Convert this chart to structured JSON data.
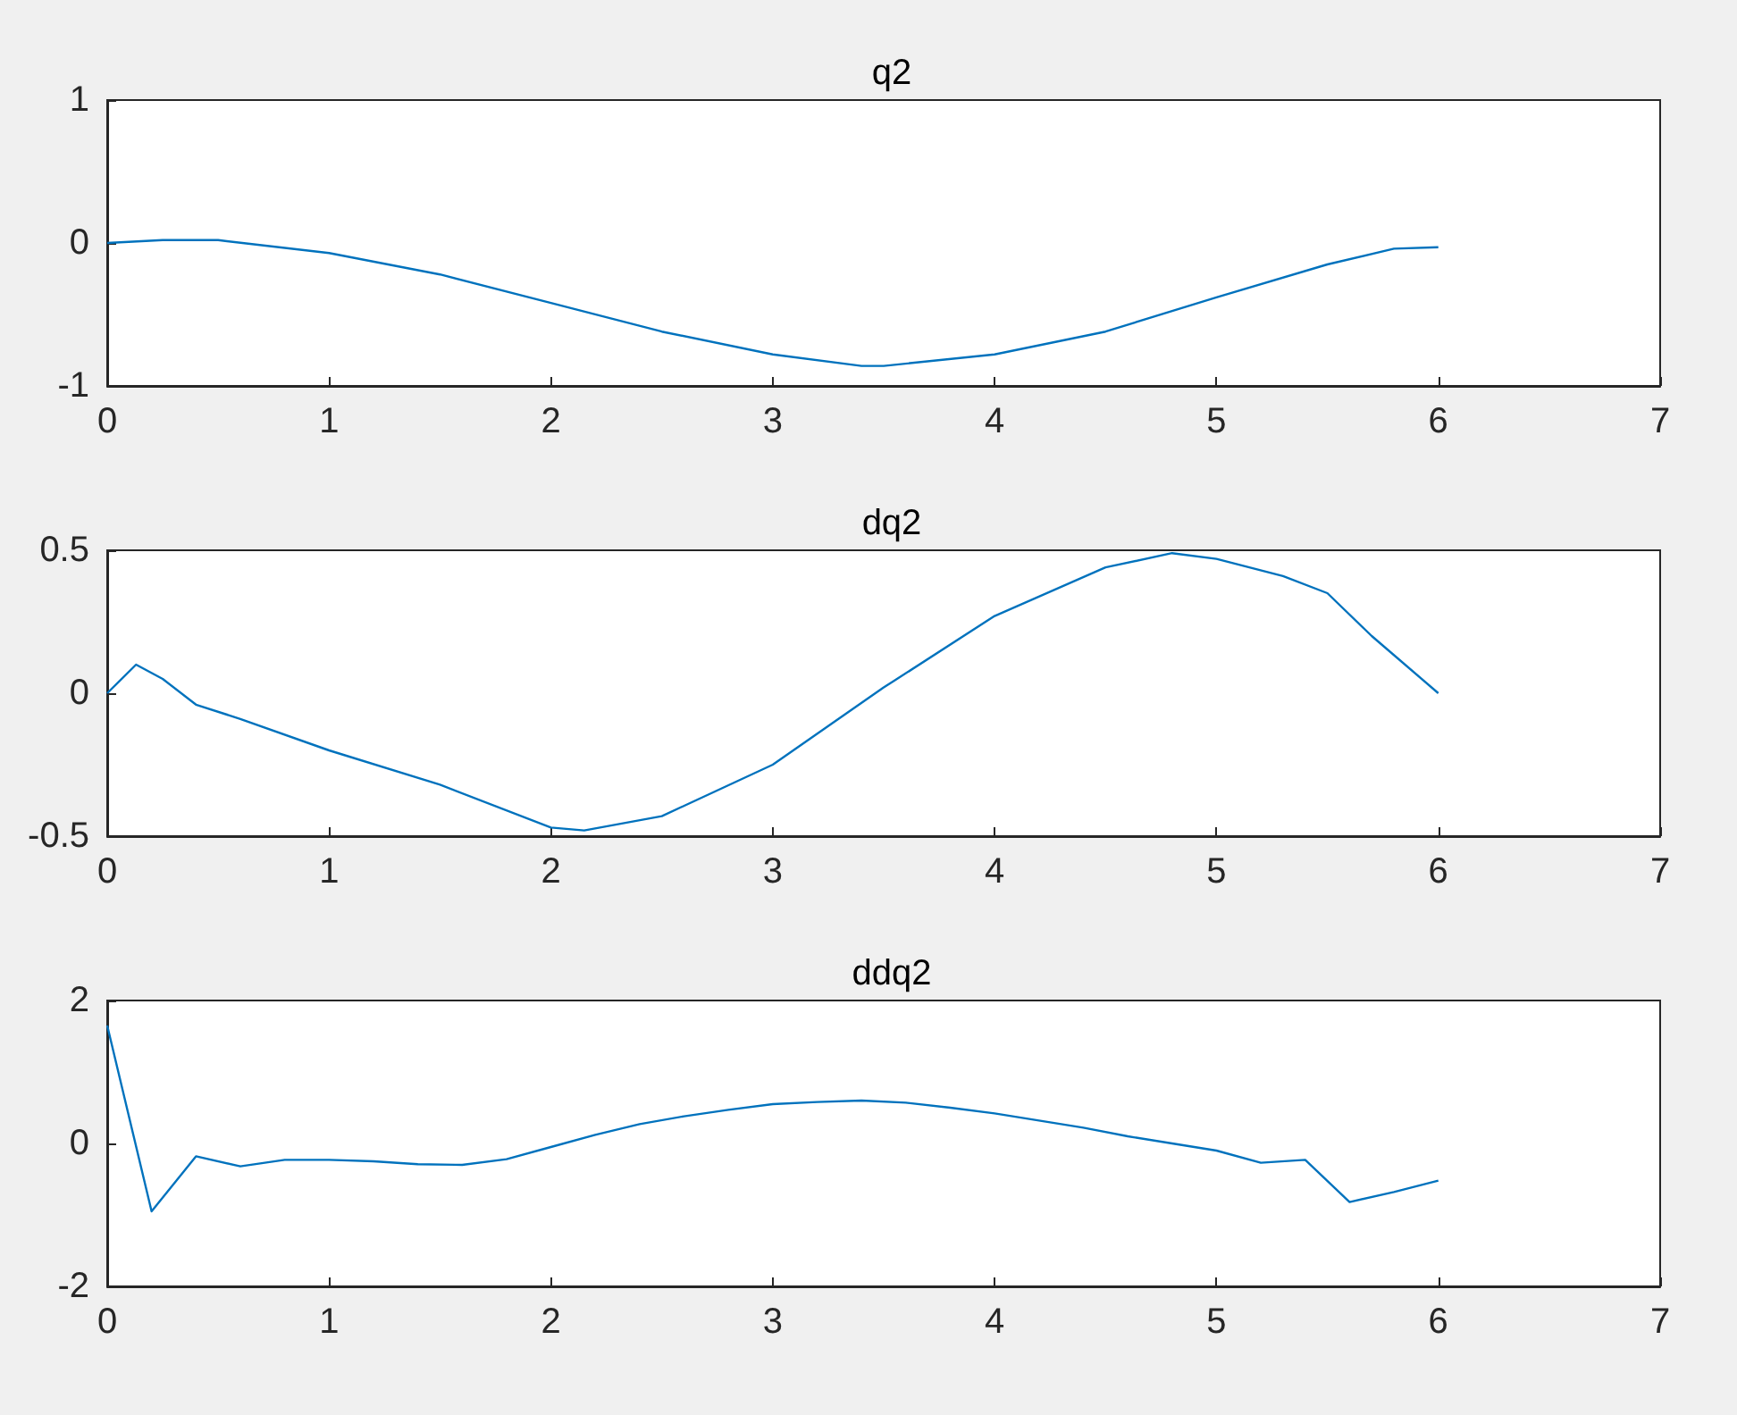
{
  "chart_data": [
    {
      "type": "line",
      "title": "q2",
      "xlim": [
        0,
        7
      ],
      "xticks": [
        0,
        1,
        2,
        3,
        4,
        5,
        6,
        7
      ],
      "ylim": [
        -1,
        1
      ],
      "yticks": [
        -1,
        0,
        1
      ],
      "grid": false,
      "marker": "none",
      "line_style": "solid",
      "series": [
        {
          "color": "#0072bd",
          "x": [
            0,
            0.25,
            0.5,
            1,
            1.5,
            2,
            2.5,
            3,
            3.4,
            3.5,
            4,
            4.5,
            5,
            5.5,
            5.8,
            6
          ],
          "values": [
            0,
            0.02,
            0.02,
            -0.07,
            -0.22,
            -0.42,
            -0.62,
            -0.78,
            -0.86,
            -0.86,
            -0.78,
            -0.62,
            -0.38,
            -0.15,
            -0.04,
            -0.03
          ]
        }
      ]
    },
    {
      "type": "line",
      "title": "dq2",
      "xlim": [
        0,
        7
      ],
      "xticks": [
        0,
        1,
        2,
        3,
        4,
        5,
        6,
        7
      ],
      "ylim": [
        -0.5,
        0.5
      ],
      "yticks": [
        -0.5,
        0,
        0.5
      ],
      "grid": false,
      "marker": "none",
      "line_style": "solid",
      "series": [
        {
          "color": "#0072bd",
          "x": [
            0,
            0.13,
            0.25,
            0.4,
            0.6,
            1,
            1.5,
            2,
            2.15,
            2.5,
            3,
            3.5,
            4,
            4.5,
            4.8,
            5,
            5.3,
            5.5,
            5.7,
            6
          ],
          "values": [
            0,
            0.1,
            0.05,
            -0.04,
            -0.09,
            -0.2,
            -0.32,
            -0.47,
            -0.48,
            -0.43,
            -0.25,
            0.02,
            0.27,
            0.44,
            0.49,
            0.47,
            0.41,
            0.35,
            0.2,
            0
          ]
        }
      ]
    },
    {
      "type": "line",
      "title": "ddq2",
      "xlim": [
        0,
        7
      ],
      "xticks": [
        0,
        1,
        2,
        3,
        4,
        5,
        6,
        7
      ],
      "ylim": [
        -2,
        2
      ],
      "yticks": [
        -2,
        0,
        2
      ],
      "grid": false,
      "marker": "none",
      "line_style": "solid",
      "series": [
        {
          "color": "#0072bd",
          "x": [
            0,
            0.2,
            0.4,
            0.6,
            0.8,
            1,
            1.2,
            1.4,
            1.6,
            1.8,
            2,
            2.2,
            2.4,
            2.6,
            2.8,
            3,
            3.2,
            3.4,
            3.6,
            3.8,
            4,
            4.2,
            4.4,
            4.6,
            4.8,
            5,
            5.2,
            5.4,
            5.6,
            5.8,
            6
          ],
          "values": [
            1.65,
            -0.95,
            -0.18,
            -0.32,
            -0.23,
            -0.23,
            -0.25,
            -0.29,
            -0.3,
            -0.22,
            -0.05,
            0.12,
            0.27,
            0.38,
            0.47,
            0.55,
            0.58,
            0.6,
            0.57,
            0.5,
            0.42,
            0.32,
            0.22,
            0.1,
            0,
            -0.1,
            -0.27,
            -0.23,
            -0.82,
            -0.68,
            -0.52
          ]
        }
      ]
    }
  ]
}
